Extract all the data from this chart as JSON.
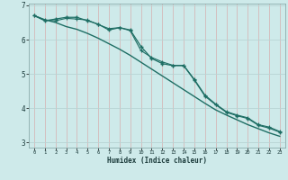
{
  "xlabel": "Humidex (Indice chaleur)",
  "bg_color": "#ceeaea",
  "line_color": "#1e6e64",
  "grid_color_v": "#d4b8b8",
  "grid_color_h": "#b8d4d4",
  "xlim": [
    -0.5,
    23.5
  ],
  "ylim": [
    2.85,
    7.05
  ],
  "xticks": [
    0,
    1,
    2,
    3,
    4,
    5,
    6,
    7,
    8,
    9,
    10,
    11,
    12,
    13,
    14,
    15,
    16,
    17,
    18,
    19,
    20,
    21,
    22,
    23
  ],
  "yticks": [
    3,
    4,
    5,
    6,
    7
  ],
  "smooth_y": [
    6.7,
    6.58,
    6.5,
    6.38,
    6.3,
    6.18,
    6.04,
    5.88,
    5.72,
    5.54,
    5.34,
    5.14,
    4.94,
    4.74,
    4.54,
    4.34,
    4.14,
    3.95,
    3.8,
    3.66,
    3.52,
    3.4,
    3.28,
    3.18
  ],
  "jagged_y": [
    6.7,
    6.55,
    6.6,
    6.65,
    6.65,
    6.55,
    6.45,
    6.28,
    6.35,
    6.28,
    5.8,
    5.45,
    5.3,
    5.24,
    5.24,
    4.82,
    4.35,
    4.1,
    3.88,
    3.78,
    3.7,
    3.5,
    3.42,
    3.3
  ],
  "line3_y": [
    6.7,
    6.57,
    6.55,
    6.62,
    6.6,
    6.57,
    6.44,
    6.32,
    6.35,
    6.26,
    5.68,
    5.48,
    5.35,
    5.25,
    5.25,
    4.84,
    4.38,
    4.12,
    3.9,
    3.8,
    3.72,
    3.52,
    3.45,
    3.32
  ]
}
